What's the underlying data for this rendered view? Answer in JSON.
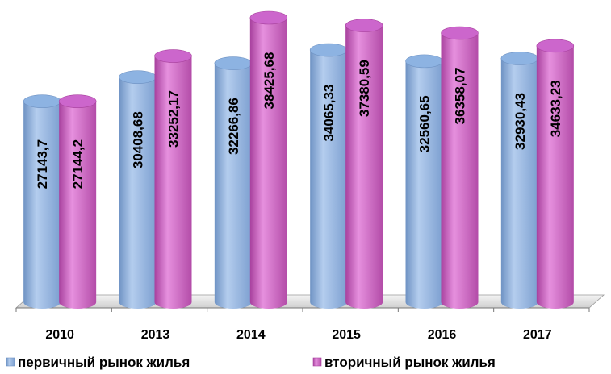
{
  "chart_data": {
    "type": "bar3d",
    "categories": [
      "2010",
      "2013",
      "2014",
      "2015",
      "2016",
      "2017"
    ],
    "series": [
      {
        "name": "первичный рынок жилья",
        "color": "#8db3e2",
        "values": [
          27143.7,
          30408.68,
          32266.86,
          34065.33,
          32560.65,
          32930.43
        ],
        "value_labels": [
          "27143,7",
          "30408,68",
          "32266,86",
          "34065,33",
          "32560,65",
          "32930,43"
        ]
      },
      {
        "name": "вторичный рынок жилья",
        "color": "#cc66cc",
        "values": [
          27144.2,
          33252.17,
          38425.68,
          37380.59,
          36358.07,
          34633.23
        ],
        "value_labels": [
          "27144,2",
          "33252,17",
          "38425,68",
          "37380,59",
          "36358,07",
          "34633,23"
        ]
      }
    ]
  }
}
